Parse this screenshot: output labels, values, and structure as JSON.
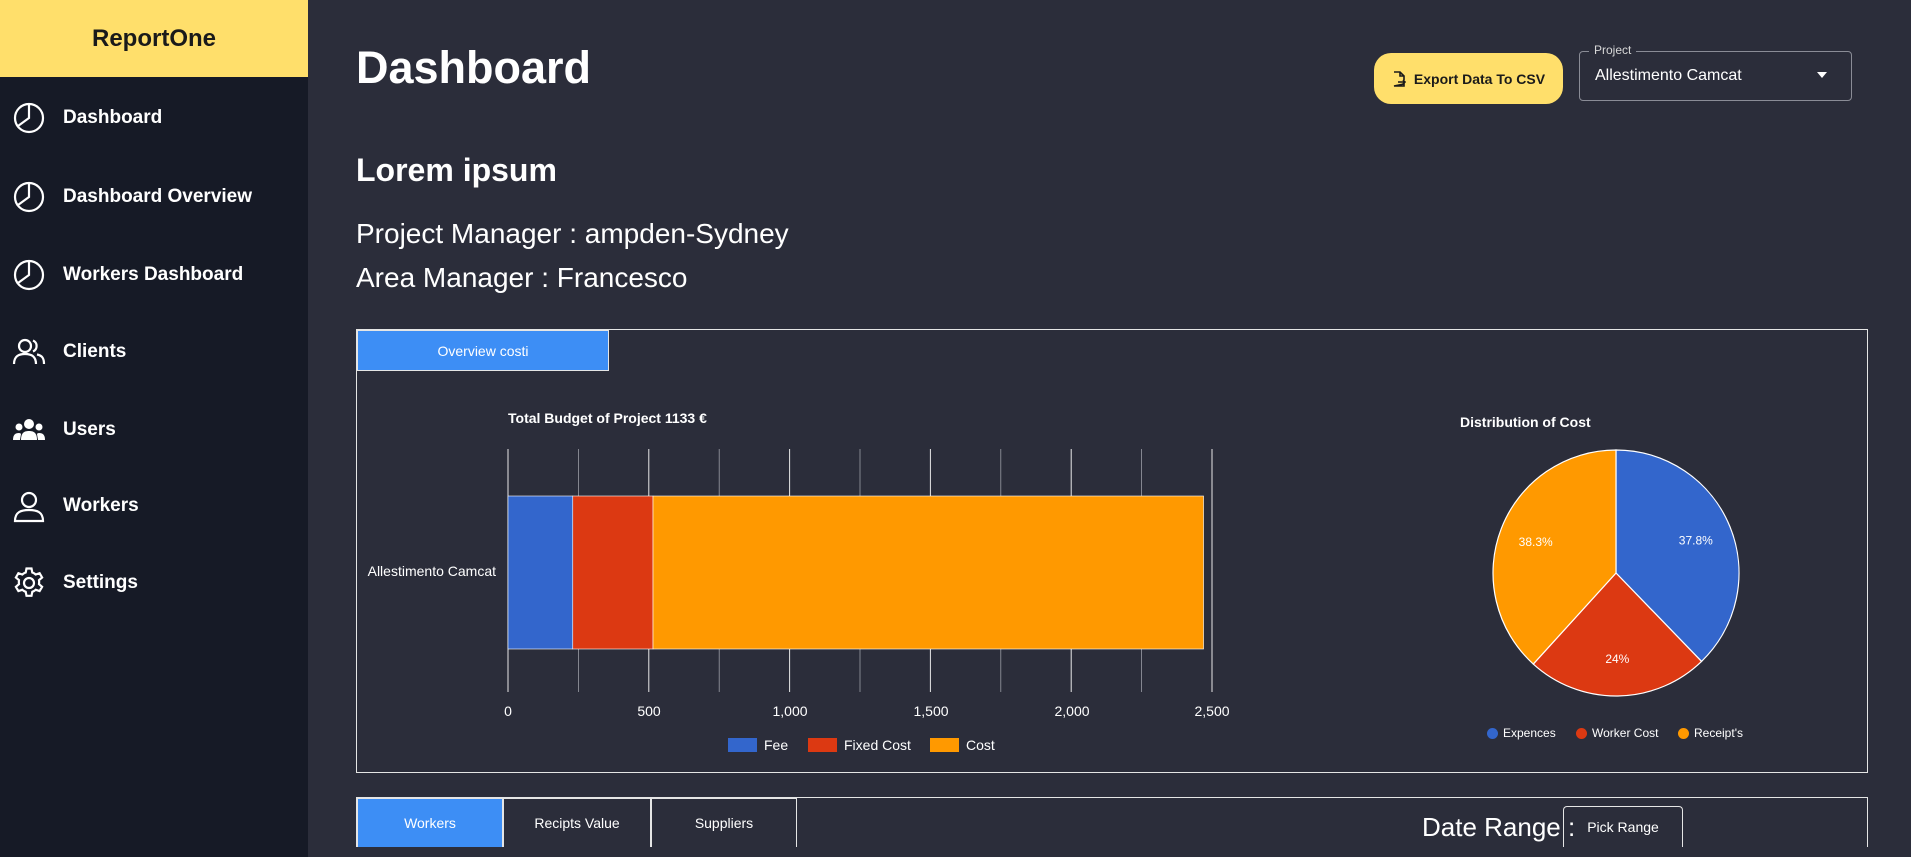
{
  "sidebar": {
    "brand": "ReportOne",
    "items": [
      {
        "label": "Dashboard",
        "icon": "pie-chart-icon"
      },
      {
        "label": "Dashboard Overview",
        "icon": "pie-chart-icon"
      },
      {
        "label": "Workers Dashboard",
        "icon": "pie-chart-icon"
      },
      {
        "label": "Clients",
        "icon": "people-icon"
      },
      {
        "label": "Users",
        "icon": "group-icon"
      },
      {
        "label": "Workers",
        "icon": "person-icon"
      },
      {
        "label": "Settings",
        "icon": "gear-icon"
      }
    ]
  },
  "header": {
    "title": "Dashboard",
    "export_label": "Export Data To CSV",
    "project_legend": "Project",
    "project_value": "Allestimento Camcat"
  },
  "section": {
    "title": "Lorem ipsum",
    "project_manager": "Project Manager : ampden-Sydney",
    "area_manager": "Area Manager : Francesco"
  },
  "overview_tab": "Overview costi",
  "chart_data": [
    {
      "type": "bar",
      "orientation": "horizontal",
      "stacked": true,
      "title": "Total Budget of Project 1133 €",
      "categories": [
        "Allestimento Camcat"
      ],
      "series": [
        {
          "name": "Fee",
          "values": [
            230
          ],
          "color": "#3366cc"
        },
        {
          "name": "Fixed Cost",
          "values": [
            285
          ],
          "color": "#dc3912"
        },
        {
          "name": "Cost",
          "values": [
            1955
          ],
          "color": "#ff9900"
        }
      ],
      "xlim": [
        0,
        2500
      ],
      "ticks": [
        "0",
        "500",
        "1,000",
        "1,500",
        "2,000",
        "2,500"
      ],
      "grid": true,
      "legend": "bottom"
    },
    {
      "type": "pie",
      "title": "Distribution of Cost",
      "slices": [
        {
          "name": "Expences",
          "value": 37.8,
          "label": "37.8%",
          "color": "#3366cc"
        },
        {
          "name": "Worker Cost",
          "value": 24,
          "label": "24%",
          "color": "#dc3912"
        },
        {
          "name": "Receipt's",
          "value": 38.3,
          "label": "38.3%",
          "color": "#ff9900"
        }
      ],
      "legend": "bottom"
    }
  ],
  "bottom": {
    "tabs": [
      "Workers",
      "Recipts Value",
      "Suppliers"
    ],
    "date_label": "Date Range :",
    "pick_label": "Pick Range"
  },
  "colors": {
    "accent": "#ffdf6b",
    "tab_active": "#3d8ef5"
  }
}
